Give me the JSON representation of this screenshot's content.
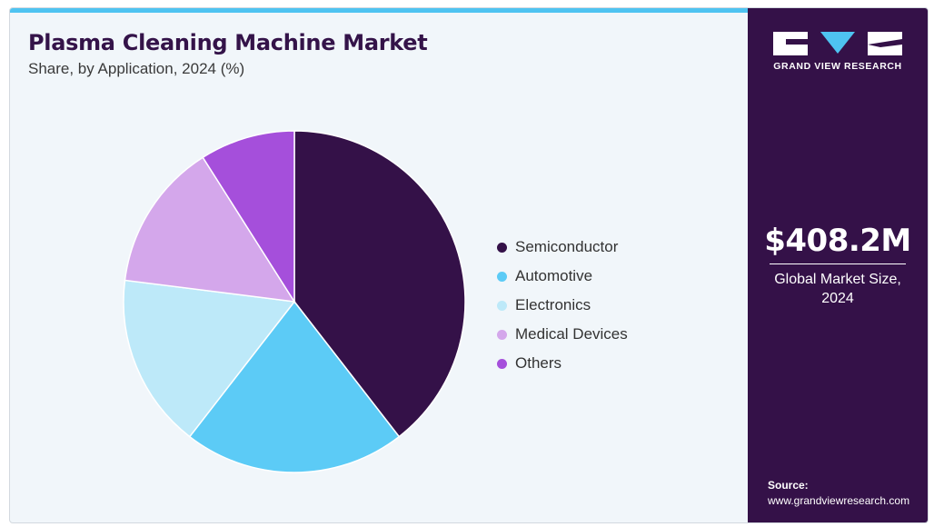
{
  "header": {
    "title": "Plasma Cleaning Machine Market",
    "subtitle": "Share, by Application, 2024 (%)"
  },
  "chart_data": {
    "type": "pie",
    "title": "Plasma Cleaning Machine Market",
    "subtitle": "Share, by Application, 2024 (%)",
    "categories": [
      "Semiconductor",
      "Automotive",
      "Electronics",
      "Medical Devices",
      "Others"
    ],
    "values": [
      39.5,
      21.0,
      16.5,
      14.0,
      9.0
    ],
    "colors": [
      "#341148",
      "#5ccbf6",
      "#bde9f9",
      "#d4a7eb",
      "#a54fdb"
    ],
    "legend_position": "right",
    "start_angle": "12 o'clock",
    "direction": "clockwise"
  },
  "side_panel": {
    "logo_text": "GRAND VIEW RESEARCH",
    "market_size": "$408.2M",
    "market_caption_line1": "Global Market Size,",
    "market_caption_line2": "2024",
    "source_label": "Source:",
    "source_url": "www.grandviewresearch.com"
  },
  "colors": {
    "panel_bg": "#341148",
    "accent": "#4ec3f1",
    "title": "#341349",
    "page_bg": "#f1f6fa"
  }
}
